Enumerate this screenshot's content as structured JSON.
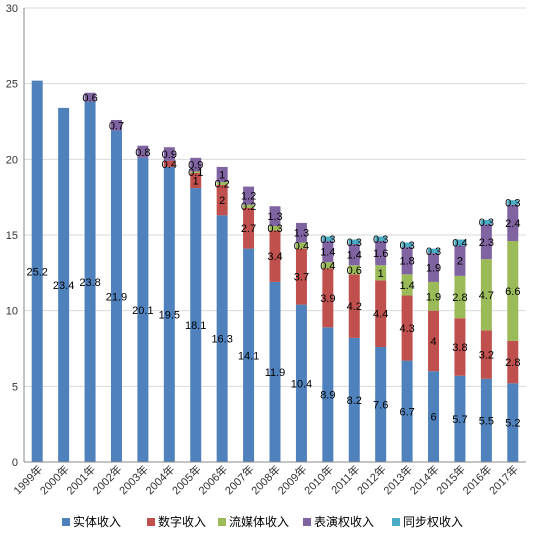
{
  "chart_data": {
    "type": "bar",
    "stacked": true,
    "title": "",
    "xlabel": "",
    "ylabel": "",
    "ylim": [
      0,
      30
    ],
    "yticks": [
      0,
      5,
      10,
      15,
      20,
      25,
      30
    ],
    "grid": true,
    "legend": "bottom",
    "categories": [
      "1999年",
      "2000年",
      "2001年",
      "2002年",
      "2003年",
      "2004年",
      "2005年",
      "2006年",
      "2007年",
      "2008年",
      "2009年",
      "2010年",
      "2011年",
      "2012年",
      "2013年",
      "2014年",
      "2015年",
      "2016年",
      "2017年"
    ],
    "series": [
      {
        "name": "实体收入",
        "color": "#4F81BD",
        "values": [
          25.2,
          23.4,
          23.8,
          21.9,
          20.1,
          19.5,
          18.1,
          16.3,
          14.1,
          11.9,
          10.4,
          8.9,
          8.2,
          7.6,
          6.7,
          6,
          5.7,
          5.5,
          5.2
        ]
      },
      {
        "name": "数字收入",
        "color": "#C0504D",
        "values": [
          null,
          null,
          null,
          null,
          null,
          0.4,
          1,
          2,
          2.7,
          3.4,
          3.7,
          3.9,
          4.2,
          4.4,
          4.3,
          4,
          3.8,
          3.2,
          2.8
        ]
      },
      {
        "name": "流媒体收入",
        "color": "#9BBB59",
        "values": [
          null,
          null,
          null,
          null,
          null,
          null,
          0.1,
          0.2,
          0.2,
          0.3,
          0.4,
          0.4,
          0.6,
          1,
          1.4,
          1.9,
          2.8,
          4.7,
          6.6
        ]
      },
      {
        "name": "表演权收入",
        "color": "#8064A2",
        "values": [
          null,
          null,
          0.6,
          0.7,
          0.8,
          0.9,
          0.9,
          1,
          1.2,
          1.3,
          1.3,
          1.4,
          1.4,
          1.6,
          1.8,
          1.9,
          2,
          2.3,
          2.4
        ]
      },
      {
        "name": "同步权收入",
        "color": "#4BACC6",
        "values": [
          null,
          null,
          null,
          null,
          null,
          null,
          null,
          null,
          null,
          null,
          null,
          0.3,
          0.3,
          0.3,
          0.3,
          0.3,
          0.4,
          0.3,
          0.3
        ]
      }
    ]
  }
}
